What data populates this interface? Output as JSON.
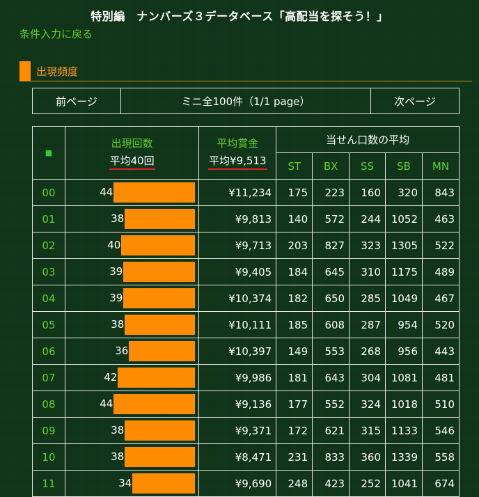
{
  "header": {
    "title": "特別編　ナンバーズ３データベース「高配当を探そう！」",
    "back_link": "条件入力に戻る",
    "section_title": "出現頻度"
  },
  "pager": {
    "prev": "前ページ",
    "info": "ミニ全100件（1/1 page）",
    "next": "次ページ"
  },
  "table": {
    "corner_mark": "■",
    "col_count": "出現回数",
    "col_count_avg": "平均40回",
    "col_prize": "平均賞金",
    "col_prize_avg": "平均¥9,513",
    "col_group": "当せん口数の平均",
    "sub_cols": [
      "ST",
      "BX",
      "SS",
      "SB",
      "MN"
    ],
    "rows": [
      {
        "num": "00",
        "count": 44,
        "prize": "¥11,234",
        "st": "175",
        "bx": "223",
        "ss": "160",
        "sb": "320",
        "mn": "843"
      },
      {
        "num": "01",
        "count": 38,
        "prize": "¥9,813",
        "st": "140",
        "bx": "572",
        "ss": "244",
        "sb": "1052",
        "mn": "463"
      },
      {
        "num": "02",
        "count": 40,
        "prize": "¥9,713",
        "st": "203",
        "bx": "827",
        "ss": "323",
        "sb": "1305",
        "mn": "522"
      },
      {
        "num": "03",
        "count": 39,
        "prize": "¥9,405",
        "st": "184",
        "bx": "645",
        "ss": "310",
        "sb": "1175",
        "mn": "489"
      },
      {
        "num": "04",
        "count": 39,
        "prize": "¥10,374",
        "st": "182",
        "bx": "650",
        "ss": "285",
        "sb": "1049",
        "mn": "467"
      },
      {
        "num": "05",
        "count": 38,
        "prize": "¥10,111",
        "st": "185",
        "bx": "608",
        "ss": "287",
        "sb": "954",
        "mn": "520"
      },
      {
        "num": "06",
        "count": 36,
        "prize": "¥10,397",
        "st": "149",
        "bx": "553",
        "ss": "268",
        "sb": "956",
        "mn": "443"
      },
      {
        "num": "07",
        "count": 42,
        "prize": "¥9,986",
        "st": "181",
        "bx": "643",
        "ss": "304",
        "sb": "1081",
        "mn": "481"
      },
      {
        "num": "08",
        "count": 44,
        "prize": "¥9,136",
        "st": "177",
        "bx": "552",
        "ss": "324",
        "sb": "1018",
        "mn": "510"
      },
      {
        "num": "09",
        "count": 38,
        "prize": "¥9,371",
        "st": "172",
        "bx": "621",
        "ss": "315",
        "sb": "1133",
        "mn": "546"
      },
      {
        "num": "10",
        "count": 38,
        "prize": "¥8,471",
        "st": "231",
        "bx": "833",
        "ss": "360",
        "sb": "1339",
        "mn": "558"
      },
      {
        "num": "11",
        "count": 34,
        "prize": "¥9,690",
        "st": "248",
        "bx": "423",
        "ss": "252",
        "sb": "1041",
        "mn": "674"
      }
    ]
  },
  "colors": {
    "background": "#0f3318",
    "accent_orange": "#ff8c00",
    "link_green": "#5fd12c",
    "underline_red": "#e0231b"
  }
}
